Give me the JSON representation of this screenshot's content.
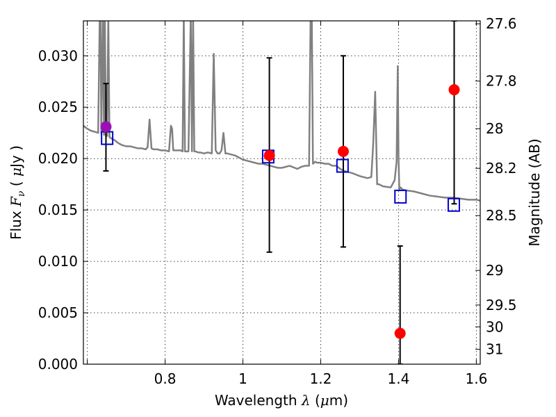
{
  "chart_data": {
    "type": "scatter",
    "title": "",
    "xlabel": {
      "prefix": "Wavelength",
      "sym": "λ",
      "open": " (",
      "unit_math": "μ",
      "unit": "m)"
    },
    "ylabel": {
      "prefix": "Flux",
      "sym": "F",
      "sub": "ν",
      "open": " ( ",
      "unit_math": "μ",
      "unit": "Jy )"
    },
    "y2label": "Magnitude (AB)",
    "xlim": [
      0.59,
      1.61
    ],
    "ylim": [
      0.0,
      0.0334
    ],
    "grid": true,
    "x_ticks": [
      {
        "value": 0.6,
        "label": ""
      },
      {
        "value": 0.8,
        "label": "0.8"
      },
      {
        "value": 1.0,
        "label": "1"
      },
      {
        "value": 1.2,
        "label": "1.2"
      },
      {
        "value": 1.4,
        "label": "1.4"
      },
      {
        "value": 1.6,
        "label": "1.6"
      }
    ],
    "y_ticks": [
      {
        "value": 0.0,
        "label": "0.000"
      },
      {
        "value": 0.005,
        "label": "0.005"
      },
      {
        "value": 0.01,
        "label": "0.010"
      },
      {
        "value": 0.015,
        "label": "0.015"
      },
      {
        "value": 0.02,
        "label": "0.020"
      },
      {
        "value": 0.025,
        "label": "0.025"
      },
      {
        "value": 0.03,
        "label": "0.030"
      }
    ],
    "y2_ticks": [
      {
        "mag": 27.6,
        "label": "27.6"
      },
      {
        "mag": 27.8,
        "label": "27.8"
      },
      {
        "mag": 28.0,
        "label": "28"
      },
      {
        "mag": 28.2,
        "label": "28.2"
      },
      {
        "mag": 28.5,
        "label": "28.5"
      },
      {
        "mag": 29.0,
        "label": "29"
      },
      {
        "mag": 29.5,
        "label": "29.5"
      },
      {
        "mag": 30.0,
        "label": "30"
      },
      {
        "mag": 31.0,
        "label": "31"
      }
    ],
    "model_spectrum": {
      "color": "#808080",
      "x": [
        0.59,
        0.6,
        0.61,
        0.62,
        0.628,
        0.632,
        0.634,
        0.636,
        0.64,
        0.643,
        0.645,
        0.648,
        0.651,
        0.654,
        0.657,
        0.66,
        0.665,
        0.67,
        0.68,
        0.69,
        0.7,
        0.71,
        0.72,
        0.73,
        0.74,
        0.75,
        0.755,
        0.76,
        0.765,
        0.77,
        0.78,
        0.79,
        0.8,
        0.81,
        0.815,
        0.818,
        0.821,
        0.826,
        0.83,
        0.84,
        0.845,
        0.848,
        0.851,
        0.855,
        0.86,
        0.866,
        0.869,
        0.872,
        0.875,
        0.878,
        0.885,
        0.89,
        0.9,
        0.91,
        0.92,
        0.925,
        0.93,
        0.935,
        0.94,
        0.945,
        0.95,
        0.955,
        0.96,
        0.97,
        0.98,
        0.99,
        1.0,
        1.01,
        1.02,
        1.03,
        1.04,
        1.05,
        1.06,
        1.07,
        1.08,
        1.09,
        1.1,
        1.12,
        1.14,
        1.15,
        1.16,
        1.17,
        1.174,
        1.177,
        1.18,
        1.183,
        1.186,
        1.19,
        1.2,
        1.21,
        1.22,
        1.23,
        1.24,
        1.25,
        1.26,
        1.28,
        1.3,
        1.32,
        1.33,
        1.335,
        1.34,
        1.345,
        1.35,
        1.36,
        1.38,
        1.39,
        1.395,
        1.398,
        1.4,
        1.402,
        1.405,
        1.41,
        1.42,
        1.44,
        1.46,
        1.48,
        1.5,
        1.52,
        1.54,
        1.56,
        1.58,
        1.6,
        1.61
      ],
      "y": [
        0.0232,
        0.0229,
        0.0227,
        0.0226,
        0.0225,
        0.034,
        0.034,
        0.0224,
        0.034,
        0.0223,
        0.034,
        0.0222,
        0.0222,
        0.034,
        0.0221,
        0.022,
        0.0219,
        0.0218,
        0.0215,
        0.0213,
        0.0212,
        0.0212,
        0.0211,
        0.021,
        0.021,
        0.0209,
        0.0211,
        0.0238,
        0.021,
        0.0209,
        0.0209,
        0.0208,
        0.0208,
        0.0207,
        0.0232,
        0.0229,
        0.0208,
        0.0208,
        0.0208,
        0.0208,
        0.0207,
        0.034,
        0.0207,
        0.0207,
        0.0207,
        0.034,
        0.0207,
        0.034,
        0.0207,
        0.0207,
        0.0206,
        0.0206,
        0.0205,
        0.0206,
        0.0205,
        0.0302,
        0.0208,
        0.0205,
        0.0205,
        0.0208,
        0.0225,
        0.0205,
        0.0205,
        0.0204,
        0.0203,
        0.0201,
        0.0199,
        0.0198,
        0.0197,
        0.0196,
        0.0195,
        0.0195,
        0.0194,
        0.0193,
        0.0192,
        0.0191,
        0.0191,
        0.0193,
        0.019,
        0.0192,
        0.0193,
        0.0193,
        0.034,
        0.034,
        0.0195,
        0.0196,
        0.0197,
        0.0196,
        0.0196,
        0.0195,
        0.0195,
        0.0193,
        0.0193,
        0.019,
        0.0188,
        0.0186,
        0.0183,
        0.0181,
        0.0182,
        0.0215,
        0.0265,
        0.0175,
        0.0175,
        0.0173,
        0.0172,
        0.0179,
        0.0197,
        0.029,
        0.02,
        0.017,
        0.0172,
        0.017,
        0.0169,
        0.0168,
        0.0166,
        0.0164,
        0.0163,
        0.0162,
        0.0162,
        0.0161,
        0.016,
        0.016,
        0.0159
      ]
    },
    "observed": {
      "marker": "circle",
      "points": [
        {
          "x": 0.648,
          "y": 0.0231,
          "yerr_low": 0.0188,
          "yerr_high": 0.0273,
          "color": "#9b10b5"
        },
        {
          "x": 1.068,
          "y": 0.0203,
          "yerr_low": 0.0109,
          "yerr_high": 0.0298,
          "color": "#ff0000"
        },
        {
          "x": 1.258,
          "y": 0.0207,
          "yerr_low": 0.0114,
          "yerr_high": 0.03,
          "color": "#ff0000"
        },
        {
          "x": 1.404,
          "y": 0.003,
          "yerr_low": 0.0,
          "yerr_high": 0.0115,
          "color": "#ff0000"
        },
        {
          "x": 1.543,
          "y": 0.0267,
          "yerr_low": 0.0156,
          "yerr_high": 0.0334,
          "color": "#ff0000"
        }
      ]
    },
    "model_bandpass": {
      "marker": "square",
      "color": "#0000cc",
      "points": [
        {
          "x": 0.651,
          "y": 0.022
        },
        {
          "x": 1.065,
          "y": 0.0202
        },
        {
          "x": 1.256,
          "y": 0.0193
        },
        {
          "x": 1.405,
          "y": 0.0163
        },
        {
          "x": 1.542,
          "y": 0.0155
        }
      ]
    }
  }
}
